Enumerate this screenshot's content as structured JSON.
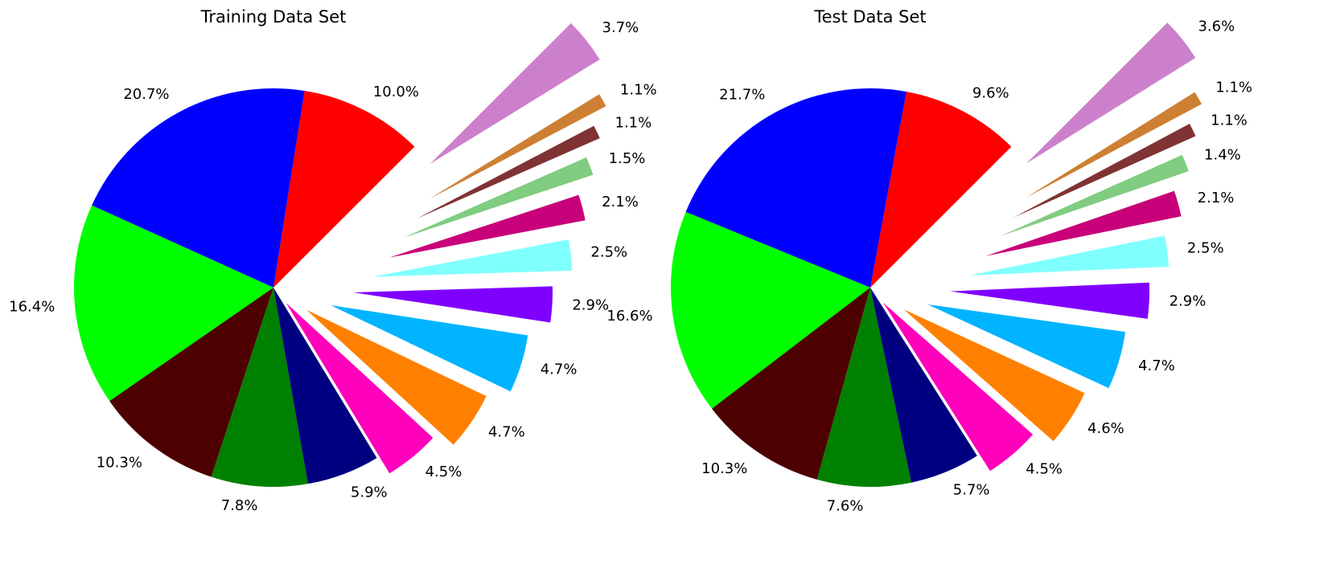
{
  "chart_data": [
    {
      "type": "pie",
      "title": "Training Data Set",
      "values": [
        10.0,
        20.7,
        16.4,
        10.3,
        7.8,
        5.9,
        4.5,
        4.7,
        4.7,
        2.9,
        2.5,
        2.1,
        1.5,
        1.1,
        1.1,
        3.7
      ],
      "value_labels": [
        "10.0%",
        "20.7%",
        "16.4%",
        "10.3%",
        "7.8%",
        "5.9%",
        "4.5%",
        "4.7%",
        "4.7%",
        "2.9%",
        "2.5%",
        "2.1%",
        "1.5%",
        "1.1%",
        "1.1%",
        "3.7%"
      ],
      "colors": [
        "#ff0000",
        "#0000ff",
        "#00ff00",
        "#4d0000",
        "#008000",
        "#000080",
        "#ff00bb",
        "#ff8000",
        "#00b4ff",
        "#8000ff",
        "#80ffff",
        "#c8007a",
        "#80cc80",
        "#803333",
        "#cd8033",
        "#cc80cc"
      ],
      "explode": [
        0,
        0,
        0,
        0,
        0,
        0,
        0.1,
        0.2,
        0.3,
        0.4,
        0.5,
        0.6,
        0.7,
        0.8,
        0.9,
        1.0
      ],
      "startangle": 45
    },
    {
      "type": "pie",
      "title": "Test Data Set",
      "values": [
        9.6,
        21.7,
        16.6,
        10.3,
        7.6,
        5.7,
        4.5,
        4.6,
        4.7,
        2.9,
        2.5,
        2.1,
        1.4,
        1.1,
        1.1,
        3.6
      ],
      "value_labels": [
        "9.6%",
        "21.7%",
        "16.6%",
        "10.3%",
        "7.6%",
        "5.7%",
        "4.5%",
        "4.6%",
        "4.7%",
        "2.9%",
        "2.5%",
        "2.1%",
        "1.4%",
        "1.1%",
        "1.1%",
        "3.6%"
      ],
      "colors": [
        "#ff0000",
        "#0000ff",
        "#00ff00",
        "#4d0000",
        "#008000",
        "#000080",
        "#ff00bb",
        "#ff8000",
        "#00b4ff",
        "#8000ff",
        "#80ffff",
        "#c8007a",
        "#80cc80",
        "#803333",
        "#cd8033",
        "#cc80cc"
      ],
      "explode": [
        0,
        0,
        0,
        0,
        0,
        0,
        0.1,
        0.2,
        0.3,
        0.4,
        0.5,
        0.6,
        0.7,
        0.8,
        0.9,
        1.0
      ],
      "startangle": 45
    }
  ]
}
